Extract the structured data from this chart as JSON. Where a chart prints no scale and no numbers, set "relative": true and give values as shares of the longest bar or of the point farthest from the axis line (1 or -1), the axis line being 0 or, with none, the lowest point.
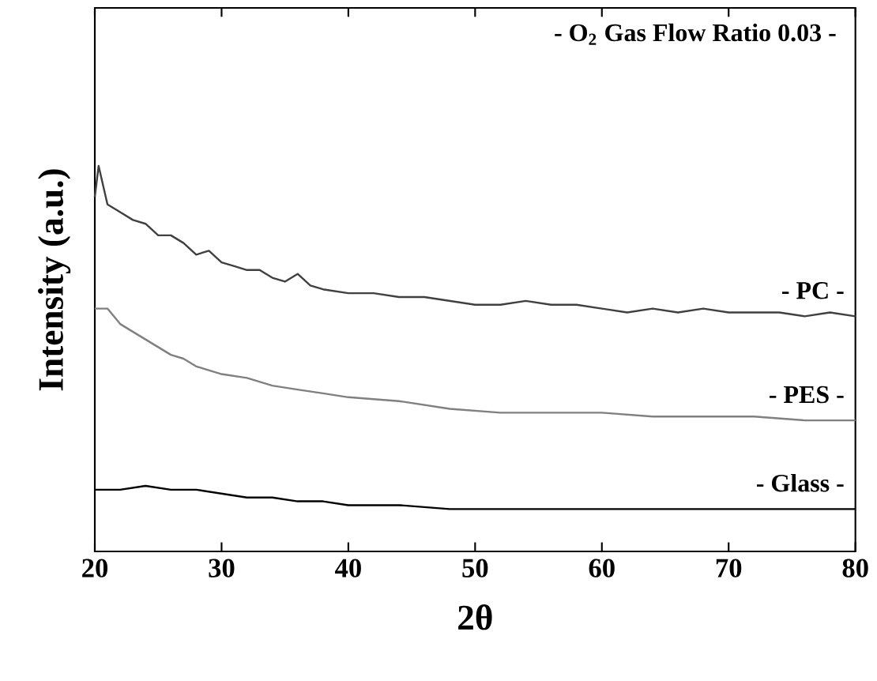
{
  "chart_data": {
    "type": "line",
    "relative": true,
    "xlabel": "2θ",
    "ylabel": "Intensity (a.u.)",
    "annotations": [
      "- O$_{2}$ Gas Flow Ratio 0.03 -"
    ],
    "xlim": [
      20,
      80
    ],
    "xticks": [
      20,
      30,
      40,
      50,
      60,
      70,
      80
    ],
    "tick_labels": "x",
    "grid": false,
    "marker": "none",
    "line_style": "solid",
    "series": [
      {
        "name": "- PC -",
        "color": "#404040",
        "x": [
          20,
          20.3,
          21,
          22,
          23,
          24,
          25,
          26,
          27,
          28,
          29,
          30,
          31,
          32,
          33,
          34,
          35,
          36,
          37,
          38,
          40,
          42,
          44,
          46,
          48,
          50,
          52,
          54,
          56,
          58,
          60,
          62,
          64,
          66,
          68,
          70,
          72,
          74,
          76,
          78,
          80
        ],
        "values": [
          0.92,
          1.0,
          0.9,
          0.88,
          0.86,
          0.85,
          0.82,
          0.82,
          0.8,
          0.77,
          0.78,
          0.75,
          0.74,
          0.73,
          0.73,
          0.71,
          0.7,
          0.72,
          0.69,
          0.68,
          0.67,
          0.67,
          0.66,
          0.66,
          0.65,
          0.64,
          0.64,
          0.65,
          0.64,
          0.64,
          0.63,
          0.62,
          0.63,
          0.62,
          0.63,
          0.62,
          0.62,
          0.62,
          0.61,
          0.62,
          0.61
        ]
      },
      {
        "name": "- PES -",
        "color": "#808080",
        "x": [
          20,
          21,
          22,
          23,
          24,
          25,
          26,
          27,
          28,
          30,
          32,
          34,
          36,
          38,
          40,
          44,
          48,
          52,
          56,
          60,
          64,
          68,
          72,
          76,
          80
        ],
        "values": [
          0.63,
          0.63,
          0.59,
          0.57,
          0.55,
          0.53,
          0.51,
          0.5,
          0.48,
          0.46,
          0.45,
          0.43,
          0.42,
          0.41,
          0.4,
          0.39,
          0.37,
          0.36,
          0.36,
          0.36,
          0.35,
          0.35,
          0.35,
          0.34,
          0.34
        ]
      },
      {
        "name": "- Glass -",
        "color": "#000000",
        "x": [
          20,
          22,
          24,
          26,
          28,
          30,
          32,
          34,
          36,
          38,
          40,
          44,
          48,
          52,
          56,
          60,
          64,
          68,
          72,
          76,
          80
        ],
        "values": [
          0.16,
          0.16,
          0.17,
          0.16,
          0.16,
          0.15,
          0.14,
          0.14,
          0.13,
          0.13,
          0.12,
          0.12,
          0.11,
          0.11,
          0.11,
          0.11,
          0.11,
          0.11,
          0.11,
          0.11,
          0.11
        ]
      }
    ]
  }
}
